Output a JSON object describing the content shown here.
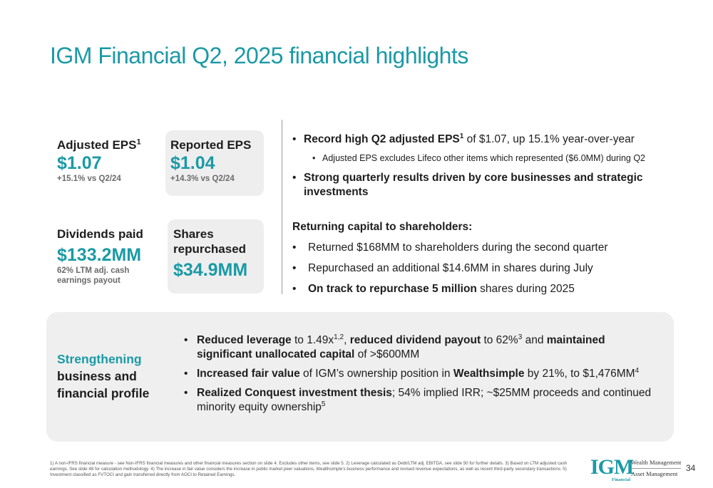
{
  "title": "IGM Financial Q2, 2025 financial highlights",
  "metrics": {
    "adjusted_eps": {
      "label": "Adjusted EPS",
      "sup": "1",
      "value": "$1.07",
      "sub": "+15.1% vs Q2/24"
    },
    "reported_eps": {
      "label": "Reported EPS",
      "value": "$1.04",
      "sub": "+14.3% vs Q2/24"
    },
    "dividends": {
      "label": "Dividends paid",
      "value": "$133.2MM",
      "sub_line1": "62% LTM adj. cash",
      "sub_line2": "earnings payout"
    },
    "shares": {
      "label_line1": "Shares",
      "label_line2": "repurchased",
      "value": "$34.9MM"
    }
  },
  "right": {
    "b1_bold": "Record high Q2 adjusted EPS",
    "b1_sup": "1",
    "b1_rest": " of $1.07, up 15.1% year-over-year",
    "b1_sub": "Adjusted EPS excludes Lifeco other items which represented ($6.0MM) during Q2",
    "b2_bold": "Strong quarterly results driven by core businesses and strategic investments",
    "section_title": "Returning capital to shareholders:",
    "r1": "Returned $168MM to shareholders during the second quarter",
    "r2": "Repurchased an additional $14.6MM in shares during July",
    "r3_bold": "On track to repurchase 5 million",
    "r3_rest": " shares during 2025"
  },
  "panel": {
    "head_teal": "Strengthening",
    "head_line2": "business and",
    "head_line3": "financial profile",
    "p1_a": "Reduced leverage",
    "p1_b": " to 1.49x",
    "p1_sup1": "1,2",
    "p1_c": ", ",
    "p1_d": "reduced dividend payout",
    "p1_e": " to 62%",
    "p1_sup2": "3",
    "p1_f": " and ",
    "p1_g": "maintained significant unallocated capital",
    "p1_h": " of >$600MM",
    "p2_a": "Increased fair value",
    "p2_b": " of IGM’s ownership position in ",
    "p2_c": "Wealthsimple",
    "p2_d": " by 21%, to $1,476MM",
    "p2_sup": "4",
    "p3_a": "Realized Conquest investment thesis",
    "p3_b": "; 54% implied IRR; ~$25MM proceeds and continued minority equity ownership",
    "p3_sup": "5"
  },
  "footnote": "1) A non-IFRS financial measure - see Non-IFRS financial measures and other financial measures section on slide 4. Excludes other items, see slide 5. 2) Leverage calculated as Debt/LTM adj. EBITDA, see slide 50 for further details. 3) Based on LTM adjusted cash earnings. See slide 48 for calculation methodology. 4) The increase in fair value considers the increase in public market peer valuations, Wealthsimple's business performance and revised revenue expectations, as well as recent third-party secondary transactions. 5) Investment classified as FVTOCI and gain transferred directly from AOCI to Retained Earnings.",
  "logo": {
    "mark": "IGM",
    "financial": "Financial",
    "wealth": "Wealth Management",
    "asset": "Asset Management"
  },
  "page_number": "34"
}
